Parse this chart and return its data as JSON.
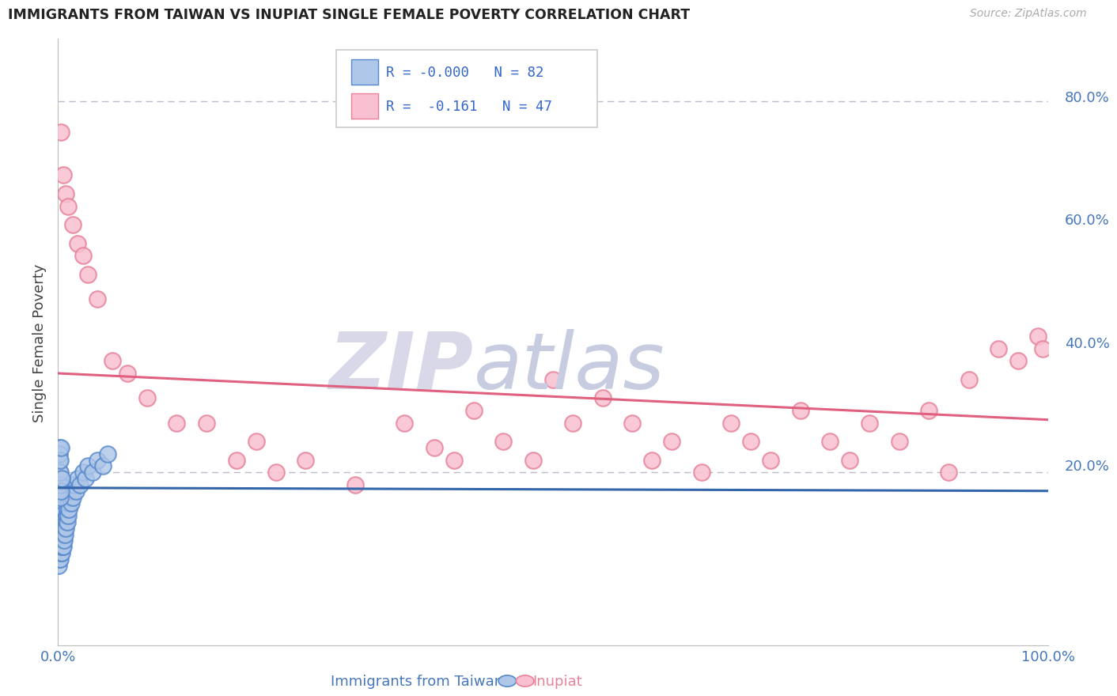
{
  "title": "IMMIGRANTS FROM TAIWAN VS INUPIAT SINGLE FEMALE POVERTY CORRELATION CHART",
  "source": "Source: ZipAtlas.com",
  "ylabel": "Single Female Poverty",
  "legend_blue_r": "R = -0.000",
  "legend_blue_n": "N = 82",
  "legend_pink_r": "R =  -0.161",
  "legend_pink_n": "N = 47",
  "legend_blue_label": "Immigrants from Taiwan",
  "legend_pink_label": "Inupiat",
  "blue_color": "#aec6e8",
  "blue_edge": "#5588cc",
  "pink_color": "#f8c0d0",
  "pink_edge": "#e8829a",
  "trendline_blue": "#3366aa",
  "trendline_pink": "#e06080",
  "blue_scatter_x": [
    0.05,
    0.08,
    0.08,
    0.1,
    0.1,
    0.1,
    0.1,
    0.12,
    0.12,
    0.13,
    0.14,
    0.15,
    0.15,
    0.15,
    0.15,
    0.17,
    0.18,
    0.18,
    0.2,
    0.2,
    0.2,
    0.22,
    0.22,
    0.22,
    0.25,
    0.25,
    0.25,
    0.28,
    0.28,
    0.3,
    0.3,
    0.3,
    0.32,
    0.35,
    0.35,
    0.38,
    0.4,
    0.4,
    0.42,
    0.45,
    0.48,
    0.5,
    0.5,
    0.52,
    0.55,
    0.58,
    0.6,
    0.65,
    0.7,
    0.75,
    0.8,
    0.85,
    0.9,
    0.95,
    1.0,
    1.05,
    1.1,
    1.2,
    1.3,
    1.4,
    1.5,
    1.6,
    1.8,
    2.0,
    2.2,
    2.5,
    2.8,
    3.0,
    3.5,
    4.0,
    4.5,
    5.0,
    0.1,
    0.12,
    0.15,
    0.18,
    0.2,
    0.22,
    0.25,
    0.28,
    0.3,
    0.35
  ],
  "blue_scatter_y": [
    5,
    8,
    10,
    12,
    15,
    18,
    20,
    6,
    9,
    11,
    13,
    7,
    9,
    11,
    14,
    8,
    10,
    12,
    7,
    9,
    12,
    8,
    10,
    13,
    6,
    9,
    11,
    7,
    10,
    8,
    10,
    12,
    9,
    7,
    11,
    8,
    10,
    12,
    9,
    8,
    11,
    9,
    12,
    8,
    10,
    11,
    9,
    11,
    10,
    12,
    11,
    13,
    12,
    14,
    13,
    15,
    14,
    16,
    15,
    17,
    16,
    18,
    17,
    19,
    18,
    20,
    19,
    21,
    20,
    22,
    21,
    23,
    22,
    24,
    23,
    16,
    18,
    20,
    22,
    24,
    17,
    19
  ],
  "pink_scatter_x": [
    0.3,
    0.5,
    0.8,
    1.0,
    1.5,
    2.0,
    2.5,
    3.0,
    4.0,
    5.5,
    7.0,
    9.0,
    12.0,
    15.0,
    18.0,
    20.0,
    22.0,
    25.0,
    30.0,
    35.0,
    38.0,
    40.0,
    42.0,
    45.0,
    48.0,
    50.0,
    52.0,
    55.0,
    58.0,
    60.0,
    62.0,
    65.0,
    68.0,
    70.0,
    72.0,
    75.0,
    78.0,
    80.0,
    82.0,
    85.0,
    88.0,
    90.0,
    92.0,
    95.0,
    97.0,
    99.0,
    99.5
  ],
  "pink_scatter_y": [
    75,
    68,
    65,
    63,
    60,
    57,
    55,
    52,
    48,
    38,
    36,
    32,
    28,
    28,
    22,
    25,
    20,
    22,
    18,
    28,
    24,
    22,
    30,
    25,
    22,
    35,
    28,
    32,
    28,
    22,
    25,
    20,
    28,
    25,
    22,
    30,
    25,
    22,
    28,
    25,
    30,
    20,
    35,
    40,
    38,
    42,
    40
  ],
  "yticks_right": [
    20,
    40,
    60,
    80
  ],
  "ytick_labels_right": [
    "20.0%",
    "40.0%",
    "60.0%",
    "80.0%"
  ],
  "ymax": 90,
  "ymin": -8,
  "xmax": 100,
  "xmin": 0,
  "bg_color": "#ffffff",
  "grid_color": "#bbbbcc",
  "title_color": "#222222",
  "axis_label_color": "#4477bb",
  "trendline_blue_start_y": 17.5,
  "trendline_blue_end_y": 17.0,
  "trendline_pink_start_y": 36.0,
  "trendline_pink_end_y": 28.5
}
